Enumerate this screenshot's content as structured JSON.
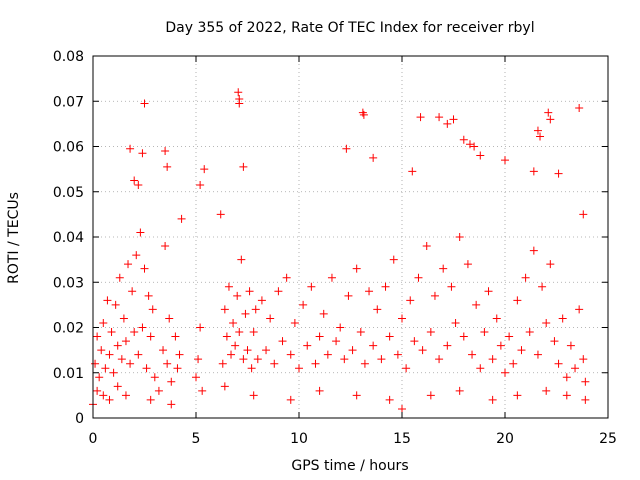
{
  "chart_data": {
    "type": "scatter",
    "title": "Day 355 of 2022, Rate Of TEC Index for receiver rbyl",
    "xlabel": "GPS time / hours",
    "ylabel": "ROTI / TECUs",
    "xlim": [
      0,
      25
    ],
    "ylim": [
      0,
      0.08
    ],
    "x_ticks": [
      0,
      5,
      10,
      15,
      20,
      25
    ],
    "x_tick_labels": [
      "0",
      "5",
      "10",
      "15",
      "20",
      "25"
    ],
    "y_ticks": [
      0,
      0.01,
      0.02,
      0.03,
      0.04,
      0.05,
      0.06,
      0.07,
      0.08
    ],
    "y_tick_labels": [
      "0",
      "0.01",
      "0.02",
      "0.03",
      "0.04",
      "0.05",
      "0.06",
      "0.07",
      "0.08"
    ],
    "grid": true,
    "marker": "+",
    "marker_color": "#ff0000",
    "series": [
      {
        "name": "ROTI",
        "x": [
          0.1,
          0.2,
          0.3,
          0.4,
          0.5,
          0.6,
          0.7,
          0.8,
          0.9,
          1.0,
          1.1,
          1.2,
          1.3,
          1.4,
          1.5,
          1.6,
          1.7,
          1.8,
          1.9,
          2.0,
          2.1,
          2.2,
          2.3,
          2.4,
          2.5,
          2.6,
          2.7,
          2.8,
          2.9,
          3.0,
          3.4,
          3.5,
          3.6,
          3.7,
          3.8,
          4.0,
          4.1,
          4.2,
          5.0,
          5.1,
          5.2,
          5.3,
          6.3,
          6.4,
          6.5,
          6.6,
          6.7,
          6.8,
          6.9,
          7.0,
          7.1,
          7.2,
          7.3,
          7.4,
          7.5,
          7.6,
          7.7,
          7.8,
          7.9,
          8.0,
          8.2,
          8.4,
          8.6,
          8.8,
          9.0,
          9.2,
          9.4,
          9.6,
          9.8,
          10.0,
          10.2,
          10.4,
          10.6,
          10.8,
          11.0,
          11.2,
          11.4,
          11.6,
          11.8,
          12.0,
          12.2,
          12.4,
          12.6,
          12.8,
          13.0,
          13.2,
          13.4,
          13.6,
          13.8,
          14.0,
          14.2,
          14.4,
          14.6,
          14.8,
          15.0,
          15.2,
          15.4,
          15.6,
          15.8,
          16.0,
          16.2,
          16.4,
          16.6,
          16.8,
          17.0,
          17.2,
          17.4,
          17.6,
          17.8,
          18.0,
          18.2,
          18.4,
          18.6,
          18.8,
          19.0,
          19.2,
          19.4,
          19.6,
          19.8,
          20.0,
          20.2,
          20.4,
          20.6,
          20.8,
          21.0,
          21.2,
          21.4,
          21.6,
          21.8,
          22.0,
          22.2,
          22.4,
          22.6,
          22.8,
          23.0,
          23.2,
          23.4,
          23.6,
          23.8,
          23.9,
          2.5,
          7.05,
          7.1,
          7.1,
          13.1,
          13.15,
          15.9,
          17.2,
          17.5,
          18.0,
          18.3,
          18.5,
          21.6,
          21.7,
          22.1,
          22.2,
          23.6,
          23.8,
          1.8,
          2.0,
          2.2,
          2.4,
          3.5,
          3.6,
          4.3,
          5.2,
          5.4,
          6.2,
          7.3,
          12.3,
          13.6,
          15.5,
          16.8,
          18.8,
          20.0,
          21.4,
          22.6,
          0.0,
          0.2,
          0.5,
          0.8,
          1.2,
          1.6,
          2.8,
          3.2,
          3.8,
          6.4,
          7.8,
          9.6,
          11.0,
          12.8,
          14.4,
          15.0,
          16.4,
          17.8,
          19.4,
          20.6,
          22.0,
          23.0,
          23.9
        ],
        "y": [
          0.012,
          0.018,
          0.009,
          0.015,
          0.021,
          0.011,
          0.026,
          0.014,
          0.019,
          0.01,
          0.025,
          0.016,
          0.031,
          0.013,
          0.022,
          0.017,
          0.034,
          0.012,
          0.028,
          0.019,
          0.036,
          0.014,
          0.041,
          0.02,
          0.033,
          0.011,
          0.027,
          0.018,
          0.024,
          0.009,
          0.015,
          0.038,
          0.012,
          0.022,
          0.008,
          0.018,
          0.011,
          0.014,
          0.009,
          0.013,
          0.02,
          0.006,
          0.012,
          0.024,
          0.018,
          0.029,
          0.014,
          0.021,
          0.016,
          0.027,
          0.019,
          0.035,
          0.013,
          0.023,
          0.015,
          0.028,
          0.011,
          0.019,
          0.024,
          0.013,
          0.026,
          0.015,
          0.022,
          0.012,
          0.028,
          0.017,
          0.031,
          0.014,
          0.021,
          0.011,
          0.025,
          0.016,
          0.029,
          0.012,
          0.018,
          0.023,
          0.014,
          0.031,
          0.017,
          0.02,
          0.013,
          0.027,
          0.015,
          0.033,
          0.019,
          0.012,
          0.028,
          0.016,
          0.024,
          0.013,
          0.029,
          0.018,
          0.035,
          0.014,
          0.022,
          0.011,
          0.026,
          0.017,
          0.031,
          0.015,
          0.038,
          0.019,
          0.027,
          0.013,
          0.033,
          0.016,
          0.029,
          0.021,
          0.04,
          0.018,
          0.034,
          0.014,
          0.025,
          0.011,
          0.019,
          0.028,
          0.013,
          0.022,
          0.016,
          0.01,
          0.018,
          0.012,
          0.026,
          0.015,
          0.031,
          0.019,
          0.037,
          0.014,
          0.029,
          0.021,
          0.034,
          0.017,
          0.012,
          0.022,
          0.009,
          0.016,
          0.011,
          0.024,
          0.013,
          0.008,
          0.0695,
          0.072,
          0.0695,
          0.0705,
          0.0675,
          0.067,
          0.0665,
          0.065,
          0.066,
          0.0615,
          0.0605,
          0.06,
          0.0635,
          0.0622,
          0.0675,
          0.066,
          0.0685,
          0.045,
          0.0595,
          0.0525,
          0.0515,
          0.0585,
          0.059,
          0.0555,
          0.044,
          0.0515,
          0.055,
          0.045,
          0.0555,
          0.0595,
          0.0575,
          0.0545,
          0.0665,
          0.058,
          0.057,
          0.0545,
          0.054,
          0.003,
          0.006,
          0.005,
          0.004,
          0.007,
          0.005,
          0.004,
          0.006,
          0.003,
          0.007,
          0.005,
          0.004,
          0.006,
          0.005,
          0.004,
          0.002,
          0.005,
          0.006,
          0.004,
          0.005,
          0.006,
          0.005,
          0.004
        ]
      }
    ]
  }
}
